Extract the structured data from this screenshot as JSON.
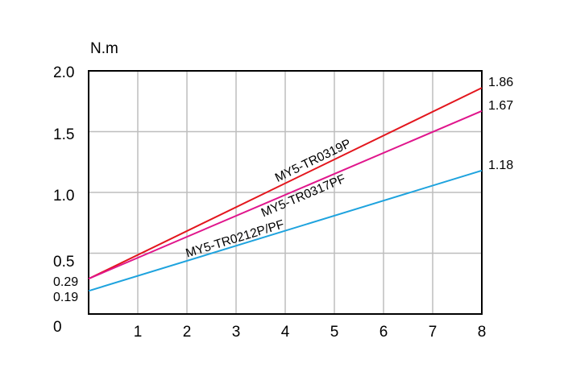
{
  "chart_data": {
    "type": "line",
    "xlabel": "",
    "ylabel": "N.m",
    "x_ticks": [
      "1",
      "2",
      "3",
      "4",
      "5",
      "6",
      "7",
      "8"
    ],
    "y_ticks": [
      "0",
      "0.5",
      "1.0",
      "1.5",
      "2.0"
    ],
    "xlim": [
      0,
      8
    ],
    "ylim": [
      0,
      2.0
    ],
    "grid": true,
    "series": [
      {
        "name": "MY5-TR0319P",
        "color": "#e3161d",
        "x": [
          0,
          8
        ],
        "y": [
          0.29,
          1.86
        ],
        "start_label": "0.29",
        "end_label": "1.86"
      },
      {
        "name": "MY5-TR0317PF",
        "color": "#e0168c",
        "x": [
          0,
          8
        ],
        "y": [
          0.29,
          1.67
        ],
        "start_label": "",
        "end_label": "1.67"
      },
      {
        "name": "MY5-TR0212P/PF",
        "color": "#1ea3de",
        "x": [
          0,
          8
        ],
        "y": [
          0.19,
          1.18
        ],
        "start_label": "0.19",
        "end_label": "1.18"
      }
    ]
  }
}
